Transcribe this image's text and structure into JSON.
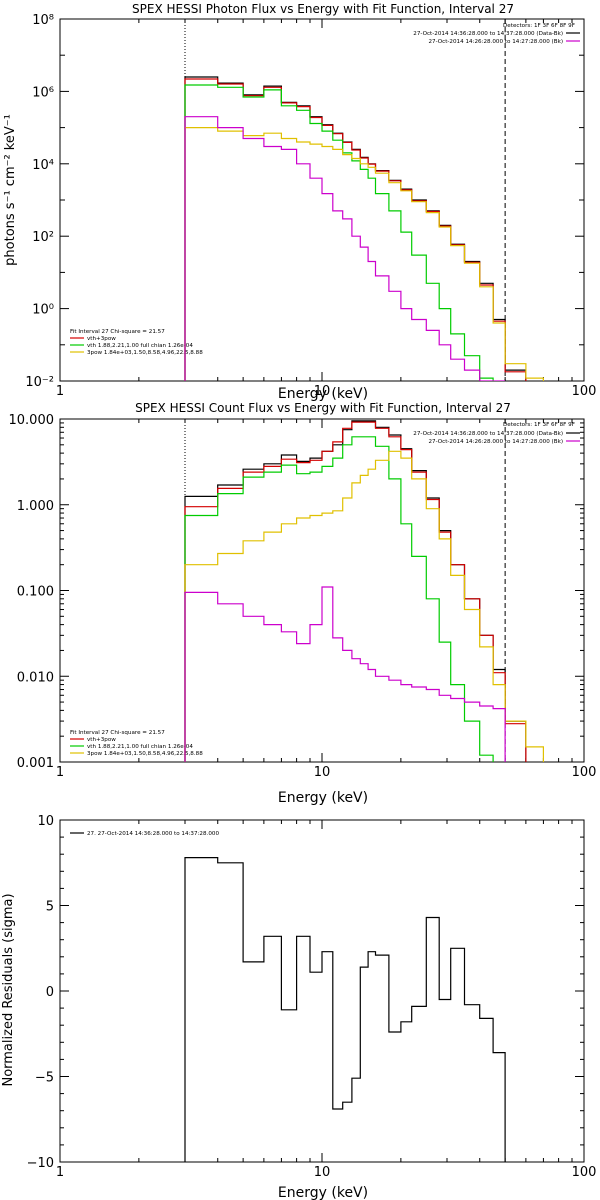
{
  "colors": {
    "total": "#000000",
    "vth_3pow": "#d40000",
    "vth": "#00cc00",
    "three_pow": "#e0c000",
    "bk": "#cc00cc"
  },
  "chart_data": [
    {
      "type": "line",
      "title": "SPEX HESSI Photon Flux vs Energy with Fit Function, Interval 27",
      "xlabel": "Energy (keV)",
      "ylabel": "photons s⁻¹ cm⁻² keV⁻¹",
      "x_scale": "log",
      "y_scale": "log",
      "xlim": [
        1,
        100
      ],
      "ylim": [
        0.01,
        100000000
      ],
      "xticks": [
        1,
        10,
        100
      ],
      "xtick_labels": [
        "1",
        "10",
        "100"
      ],
      "yticks": [
        0.01,
        1,
        100,
        10000,
        1000000,
        100000000
      ],
      "ytick_labels": [
        "10⁻²",
        "10⁰",
        "10²",
        "10⁴",
        "10⁶",
        "10⁸"
      ],
      "vlines": [
        {
          "x": 3.0,
          "style": "dotted"
        },
        {
          "x": 50,
          "style": "dashed"
        }
      ],
      "legend_top": {
        "placement": "top-right",
        "header": "Detectors: 1F 3F 6F 8F 9F",
        "entries": [
          {
            "text": "27-Oct-2014 14:36:28.000 to 14:37:28.000 (Data-Bk)",
            "color": "#000000"
          },
          {
            "text": "27-Oct-2014 14:26:28.000 to 14:27:28.000 (Bk)",
            "color": "#cc00cc"
          }
        ]
      },
      "legend_fit": {
        "placement": "bottom-left",
        "header": "Fit Interval 27   Chi-square = 21.57",
        "entries": [
          {
            "text": "vth+3pow",
            "color": "#d40000"
          },
          {
            "text": "vth 1.88,2.21,1.00   full chian 1.26e-04",
            "color": "#00cc00"
          },
          {
            "text": "3pow 1.84e+03,1.50,8.58,4.96,22.5,8.88",
            "color": "#e0c000"
          }
        ]
      },
      "bin_edges": [
        3.0,
        3.5,
        4.0,
        4.5,
        5.0,
        6.0,
        7.0,
        8.0,
        9.0,
        10.0,
        11.0,
        12.0,
        13.0,
        14.0,
        15.0,
        16.0,
        18.0,
        20.0,
        22.0,
        25.0,
        28.0,
        31.0,
        35.0,
        40.0,
        45.0,
        50.0,
        60.0,
        70.0
      ],
      "series": [
        {
          "name": "Data-Bk",
          "color": "#000000",
          "values": [
            2500000,
            2500000,
            1700000,
            1700000,
            800000,
            1400000,
            500000,
            400000,
            200000,
            120000,
            70000,
            40000,
            25000,
            15000,
            10000,
            6500,
            3500,
            2000,
            1000,
            500,
            200,
            60,
            20,
            5,
            0.5,
            0.02,
            null
          ]
        },
        {
          "name": "vth+3pow",
          "color": "#d40000",
          "values": [
            2200000,
            2200000,
            1600000,
            1600000,
            760000,
            1300000,
            480000,
            380000,
            190000,
            115000,
            68000,
            39000,
            24000,
            14500,
            9800,
            6300,
            3400,
            1900,
            950,
            480,
            190,
            58,
            19,
            4.5,
            0.45,
            0.018,
            null
          ]
        },
        {
          "name": "vth",
          "color": "#00cc00",
          "values": [
            1500000,
            1500000,
            1300000,
            1300000,
            700000,
            1100000,
            400000,
            300000,
            130000,
            80000,
            45000,
            20000,
            12000,
            7000,
            4000,
            1500,
            500,
            130,
            30,
            5,
            1,
            0.2,
            0.05,
            0.012,
            null,
            null,
            null
          ]
        },
        {
          "name": "3pow",
          "color": "#e0c000",
          "values": [
            100000,
            100000,
            80000,
            80000,
            60000,
            70000,
            50000,
            40000,
            35000,
            30000,
            25000,
            18000,
            14000,
            10000,
            8000,
            5500,
            3000,
            1800,
            900,
            450,
            180,
            55,
            18,
            4,
            0.4,
            0.03,
            0.012
          ]
        },
        {
          "name": "Bk",
          "color": "#cc00cc",
          "values": [
            200000,
            200000,
            100000,
            100000,
            50000,
            30000,
            25000,
            10000,
            4000,
            1500,
            500,
            300,
            100,
            50,
            20,
            8,
            3,
            1,
            0.5,
            0.25,
            0.1,
            0.04,
            0.02,
            0.01,
            0.008,
            null,
            null
          ]
        }
      ]
    },
    {
      "type": "line",
      "title": "SPEX HESSI Count Flux vs Energy with Fit Function, Interval 27",
      "xlabel": "Energy (keV)",
      "ylabel": "",
      "x_scale": "log",
      "y_scale": "log",
      "xlim": [
        1,
        100
      ],
      "ylim": [
        0.001,
        10
      ],
      "xticks": [
        1,
        10,
        100
      ],
      "xtick_labels": [
        "1",
        "10",
        "100"
      ],
      "yticks": [
        0.001,
        0.01,
        0.1,
        1,
        10
      ],
      "ytick_labels": [
        "0.001",
        "0.010",
        "0.100",
        "1.000",
        "10.000"
      ],
      "vlines": [
        {
          "x": 3.0,
          "style": "dotted"
        },
        {
          "x": 50,
          "style": "dashed"
        }
      ],
      "legend_top": {
        "placement": "top-right",
        "header": "Detectors: 1F 3F 6F 8F 9F",
        "entries": [
          {
            "text": "27-Oct-2014 14:36:28.000 to 14:37:28.000 (Data-Bk)",
            "color": "#000000"
          },
          {
            "text": "27-Oct-2014 14:26:28.000 to 14:27:28.000 (Bk)",
            "color": "#cc00cc"
          }
        ]
      },
      "legend_fit": {
        "placement": "bottom-left",
        "header": "Fit Interval 27   Chi-square = 21.57",
        "entries": [
          {
            "text": "vth+3pow",
            "color": "#d40000"
          },
          {
            "text": "vth 1.88,2.21,1.00   full chian 1.26e-04",
            "color": "#00cc00"
          },
          {
            "text": "3pow 1.84e+03,1.50,8.58,4.96,22.5,8.88",
            "color": "#e0c000"
          }
        ]
      },
      "bin_edges": [
        3.0,
        3.5,
        4.0,
        4.5,
        5.0,
        6.0,
        7.0,
        8.0,
        9.0,
        10.0,
        11.0,
        12.0,
        13.0,
        14.0,
        15.0,
        16.0,
        18.0,
        20.0,
        22.0,
        25.0,
        28.0,
        31.0,
        35.0,
        40.0,
        45.0,
        50.0,
        60.0,
        70.0
      ],
      "series": [
        {
          "name": "Data-Bk",
          "color": "#000000",
          "values": [
            1.25,
            1.25,
            1.7,
            1.7,
            2.6,
            3.0,
            3.8,
            3.2,
            3.5,
            4.2,
            5.0,
            7.5,
            9.5,
            9.5,
            9.5,
            8.0,
            6.5,
            4.5,
            2.5,
            1.2,
            0.5,
            0.2,
            0.08,
            0.03,
            0.012,
            0.003,
            null
          ]
        },
        {
          "name": "vth+3pow",
          "color": "#d40000",
          "values": [
            0.95,
            0.95,
            1.55,
            1.55,
            2.4,
            2.8,
            3.4,
            3.1,
            3.3,
            4.2,
            5.4,
            7.8,
            9.2,
            9.2,
            9.2,
            7.8,
            6.2,
            4.4,
            2.4,
            1.15,
            0.48,
            0.2,
            0.08,
            0.03,
            0.011,
            0.0028,
            null
          ]
        },
        {
          "name": "vth",
          "color": "#00cc00",
          "values": [
            0.75,
            0.75,
            1.35,
            1.35,
            2.1,
            2.4,
            2.9,
            2.3,
            2.4,
            2.8,
            3.5,
            5.0,
            6.2,
            6.2,
            6.2,
            4.8,
            2.0,
            0.6,
            0.25,
            0.08,
            0.025,
            0.008,
            0.003,
            0.0012,
            null,
            null,
            null
          ]
        },
        {
          "name": "3pow",
          "color": "#e0c000",
          "values": [
            0.2,
            0.2,
            0.27,
            0.27,
            0.38,
            0.48,
            0.6,
            0.7,
            0.75,
            0.8,
            0.85,
            1.2,
            1.8,
            2.2,
            2.6,
            3.3,
            4.2,
            3.5,
            2.0,
            0.9,
            0.4,
            0.15,
            0.06,
            0.022,
            0.008,
            0.003,
            0.0015
          ]
        },
        {
          "name": "Bk",
          "color": "#cc00cc",
          "values": [
            0.095,
            0.095,
            0.07,
            0.07,
            0.05,
            0.04,
            0.033,
            0.024,
            0.04,
            0.11,
            0.028,
            0.02,
            0.016,
            0.014,
            0.012,
            0.01,
            0.009,
            0.008,
            0.0075,
            0.007,
            0.006,
            0.0055,
            0.005,
            0.0045,
            0.0042,
            null,
            null
          ]
        }
      ]
    },
    {
      "type": "line",
      "title": "",
      "xlabel": "Energy (keV)",
      "ylabel": "Normalized Residuals (sigma)",
      "x_scale": "log",
      "y_scale": "linear",
      "xlim": [
        1,
        100
      ],
      "ylim": [
        -10,
        10
      ],
      "xticks": [
        1,
        10,
        100
      ],
      "xtick_labels": [
        "1",
        "10",
        "100"
      ],
      "yticks": [
        -10,
        -5,
        0,
        5,
        10
      ],
      "ytick_labels": [
        "−10",
        "−5",
        "0",
        "5",
        "10"
      ],
      "legend": {
        "placement": "top-left",
        "entries": [
          {
            "text": "27. 27-Oct-2014 14:36:28.000 to 14:37:28.000",
            "color": "#000000"
          }
        ]
      },
      "bin_edges": [
        3.0,
        3.5,
        4.0,
        4.5,
        5.0,
        6.0,
        7.0,
        8.0,
        9.0,
        10.0,
        11.0,
        12.0,
        13.0,
        14.0,
        15.0,
        16.0,
        18.0,
        20.0,
        22.0,
        25.0,
        28.0,
        31.0,
        35.0,
        40.0,
        45.0,
        50.0
      ],
      "series": [
        {
          "name": "",
          "color": "#000000",
          "values": [
            7.8,
            7.8,
            7.5,
            7.5,
            1.7,
            3.2,
            -1.1,
            3.2,
            1.1,
            2.3,
            -6.9,
            -6.5,
            -5.1,
            1.4,
            2.3,
            2.1,
            -2.4,
            -1.8,
            -0.9,
            4.3,
            -0.5,
            2.5,
            -0.8,
            -1.6,
            -3.6
          ]
        }
      ]
    }
  ]
}
